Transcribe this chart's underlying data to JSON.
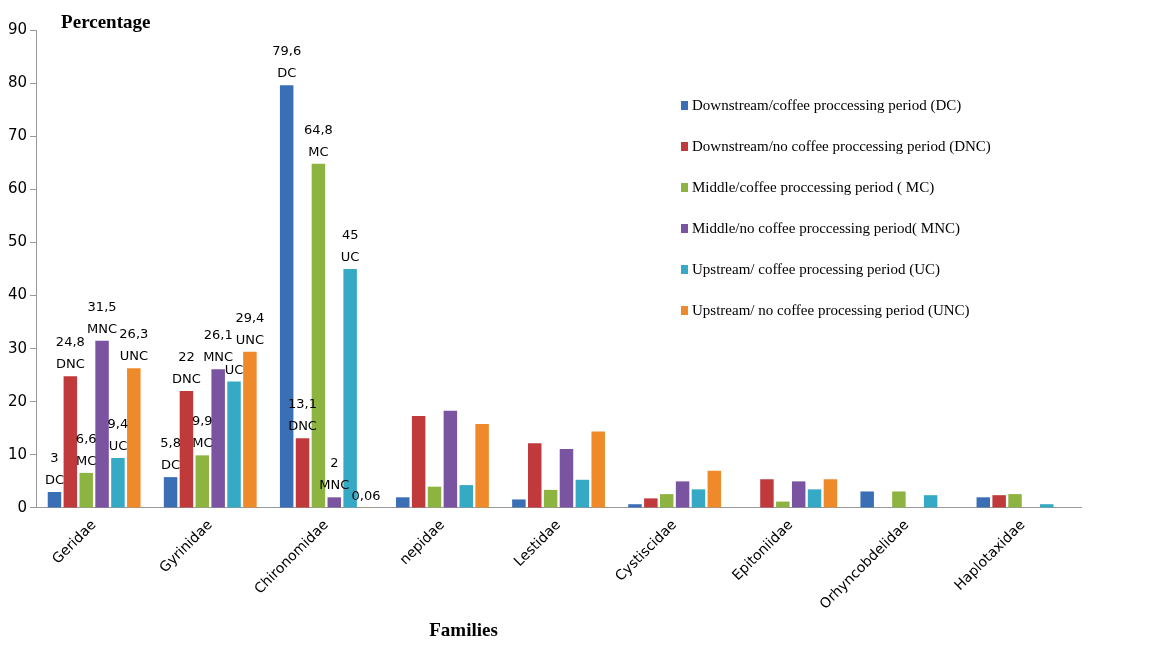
{
  "chart_data": {
    "type": "bar",
    "ylabel": "Percentage",
    "xlabel": "Families",
    "categories": [
      "Geridae",
      "Gyrinidae",
      "Chironomidae",
      "nepidae",
      "Lestidae",
      "Cystiscidae",
      "Epitoniidae",
      "Orhyncobdelidae",
      "Haplotaxidae"
    ],
    "series": [
      {
        "name": "Downstream/coffee proccessing period (DC)",
        "color": "#3a6fb5",
        "values": [
          3,
          5.8,
          79.6,
          2.0,
          1.6,
          0.7,
          null,
          3.1,
          2.0
        ],
        "value_labels": [
          "3\nDC",
          "5,8\nDC",
          "79,6\nDC",
          null,
          null,
          null,
          null,
          null,
          null
        ]
      },
      {
        "name": "Downstream/no coffee proccessing period (DNC)",
        "color": "#c0393b",
        "values": [
          24.8,
          22,
          13.1,
          17.3,
          12.2,
          1.8,
          5.4,
          null,
          2.4
        ],
        "value_labels": [
          "24,8\nDNC",
          "22\nDNC",
          "13,1\nDNC",
          null,
          null,
          null,
          null,
          null,
          null
        ]
      },
      {
        "name": " Middle/coffee proccessing period ( MC)",
        "color": "#8db440",
        "values": [
          6.6,
          9.9,
          64.8,
          4.0,
          3.4,
          2.6,
          1.2,
          3.1,
          2.6
        ],
        "value_labels": [
          "6,6\nMC",
          "9,9\nMC",
          "64,8\nMC",
          null,
          null,
          null,
          null,
          null,
          null
        ]
      },
      {
        "name": " Middle/no coffee proccessing period( MNC)",
        "color": "#7a54a0",
        "values": [
          31.5,
          26.1,
          2,
          18.3,
          11.1,
          5.0,
          5.0,
          null,
          null
        ],
        "value_labels": [
          "31,5\nMNC",
          "26,1\nMNC",
          "2\nMNC",
          null,
          null,
          null,
          null,
          null,
          null
        ]
      },
      {
        "name": "Upstream/ coffee processing period (UC)",
        "color": "#36a9c4",
        "values": [
          9.4,
          23.8,
          45,
          4.3,
          5.3,
          3.5,
          3.5,
          2.4,
          0.7
        ],
        "value_labels": [
          "9,4\nUC",
          "UC",
          "45\nUC",
          null,
          null,
          null,
          null,
          null,
          null
        ]
      },
      {
        "name": "Upstream/ no coffee processing period (UNC)",
        "color": "#ee8a2a",
        "values": [
          26.3,
          29.4,
          0.06,
          15.8,
          14.4,
          7.0,
          5.4,
          null,
          null
        ],
        "value_labels": [
          "26,3\nUNC",
          "29,4\nUNC",
          "0,06",
          null,
          null,
          null,
          null,
          null,
          null
        ]
      }
    ],
    "ylim": [
      0,
      90
    ],
    "yticks": [
      0,
      10,
      20,
      30,
      40,
      50,
      60,
      70,
      80,
      90
    ],
    "grid": false,
    "legend": "top right"
  }
}
